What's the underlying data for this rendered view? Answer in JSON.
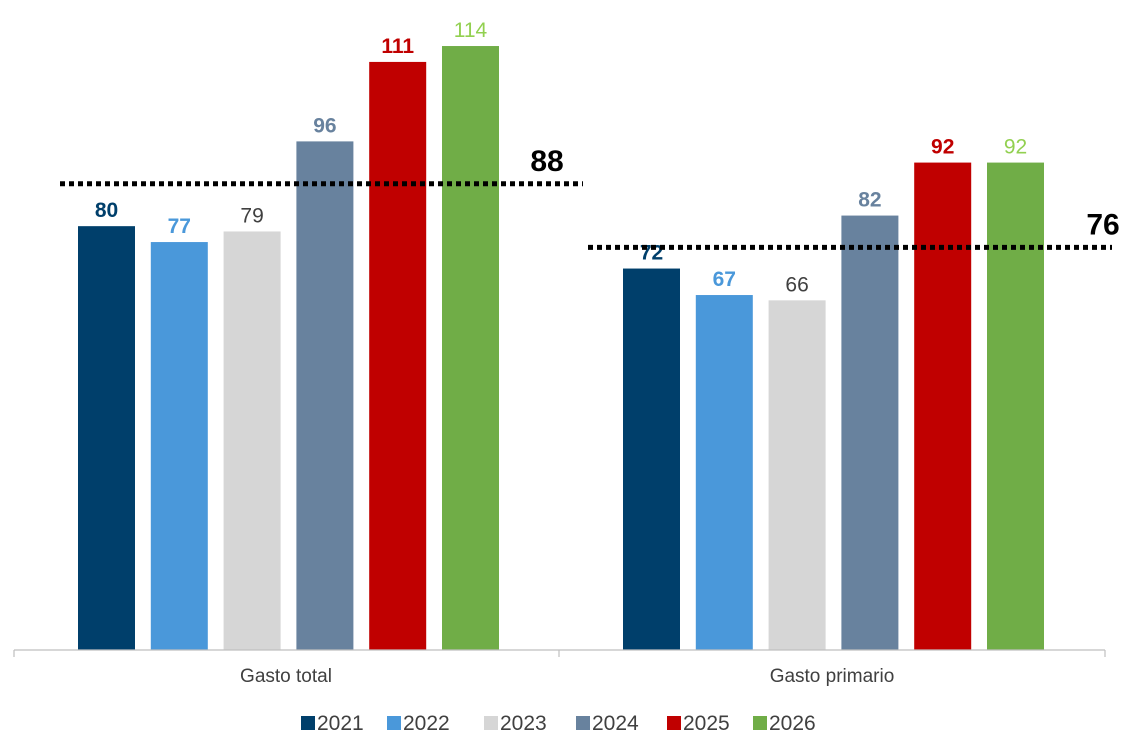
{
  "chart_data": {
    "type": "bar",
    "categories": [
      "Gasto total",
      "Gasto primario"
    ],
    "series": [
      {
        "name": "2021",
        "values": [
          80,
          72
        ],
        "color": "#003f6b",
        "label_color": "#003f6b",
        "label_bold": true
      },
      {
        "name": "2022",
        "values": [
          77,
          67
        ],
        "color": "#4a98da",
        "label_color": "#4a98da",
        "label_bold": true
      },
      {
        "name": "2023",
        "values": [
          79,
          66
        ],
        "color": "#d6d6d6",
        "label_color": "#404040",
        "label_bold": false
      },
      {
        "name": "2024",
        "values": [
          96,
          82
        ],
        "color": "#68829e",
        "label_color": "#68829e",
        "label_bold": true
      },
      {
        "name": "2025",
        "values": [
          111,
          92
        ],
        "color": "#c00000",
        "label_color": "#c00000",
        "label_bold": true
      },
      {
        "name": "2026",
        "values": [
          114,
          92
        ],
        "color": "#70ad47",
        "label_color": "#92d050",
        "label_bold": false
      }
    ],
    "reference_lines": [
      {
        "category": "Gasto total",
        "value": 88,
        "label": "88"
      },
      {
        "category": "Gasto primario",
        "value": 76,
        "label": "76"
      }
    ],
    "ylim": [
      0,
      120
    ],
    "grid": false,
    "legend_position": "bottom"
  }
}
